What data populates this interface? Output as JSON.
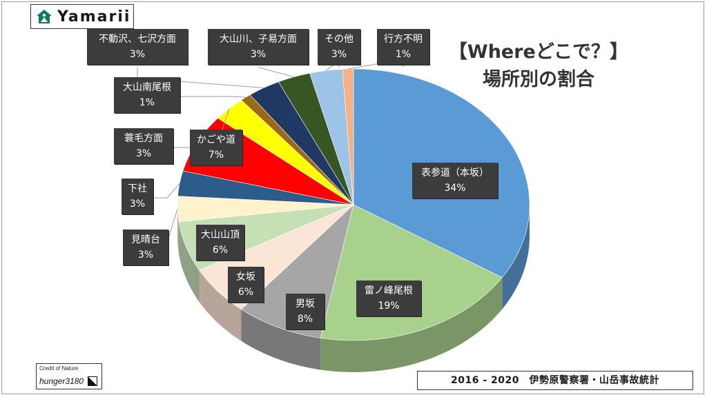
{
  "logo": {
    "text": "Yamarii"
  },
  "title": {
    "line1": "【Whereどこで？】",
    "line2": "場所別の割合"
  },
  "credit": {
    "small": "Credit of Nature",
    "name": "hunger3180"
  },
  "source": {
    "text": "2016 - 2020　伊勢原警察署・山岳事故統計"
  },
  "chart_data": {
    "type": "pie",
    "title": "【Whereどこで？】場所別の割合",
    "unit": "%",
    "slices": [
      {
        "label": "表参道（本坂）",
        "value": 34,
        "display": "34%",
        "color": "#5b9bd5"
      },
      {
        "label": "雷ノ峰尾根",
        "value": 19,
        "display": "19%",
        "color": "#a9d18e"
      },
      {
        "label": "男坂",
        "value": 8,
        "display": "8%",
        "color": "#a6a6a6"
      },
      {
        "label": "女坂",
        "value": 6,
        "display": "6%",
        "color": "#fbe5d6"
      },
      {
        "label": "大山山頂",
        "value": 6,
        "display": "6%",
        "color": "#c5e0b4"
      },
      {
        "label": "見晴台",
        "value": 3,
        "display": "3%",
        "color": "#fff2cc"
      },
      {
        "label": "下社",
        "value": 3,
        "display": "3%",
        "color": "#2e5c8a"
      },
      {
        "label": "かごや道",
        "value": 7,
        "display": "7%",
        "color": "#ff0000"
      },
      {
        "label": "蓑毛方面",
        "value": 3,
        "display": "3%",
        "color": "#ffff00"
      },
      {
        "label": "大山南尾根",
        "value": 1,
        "display": "1%",
        "color": "#9c6a17"
      },
      {
        "label": "不動沢、七沢方面",
        "value": 3,
        "display": "3%",
        "color": "#1f3864"
      },
      {
        "label": "大山川、子易方面",
        "value": 3,
        "display": "3%",
        "color": "#375623"
      },
      {
        "label": "その他",
        "value": 3,
        "display": "3%",
        "color": "#9dc3e6"
      },
      {
        "label": "行方不明",
        "value": 1,
        "display": "1%",
        "color": "#f4b183"
      }
    ],
    "start": "12 o'clock",
    "direction": "clockwise",
    "style": "3d-tilted"
  }
}
